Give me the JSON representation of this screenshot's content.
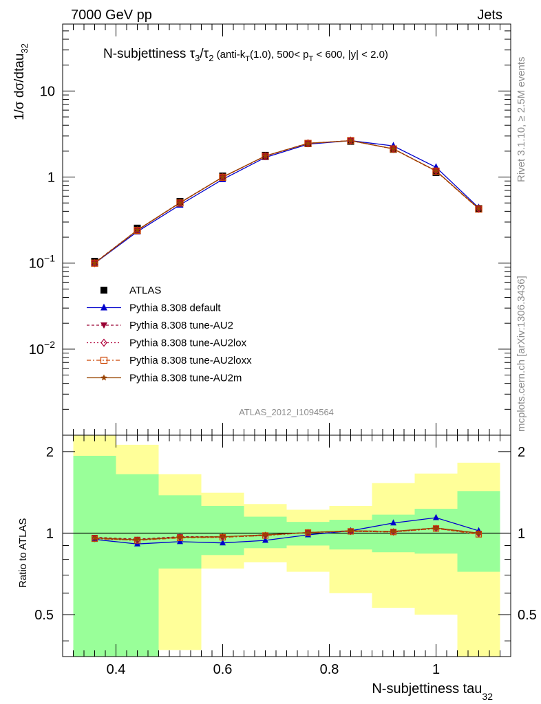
{
  "header": {
    "left": "7000 GeV pp",
    "right": "Jets"
  },
  "side": {
    "rivet": "Rivet 3.1.10, ≥ 2.5M events",
    "mcplots": "mcplots.cern.ch [arXiv:1306.3436]"
  },
  "title": {
    "main": "N-subjettiness τ",
    "sub3": "3",
    "slash": "/τ",
    "sub2": "2",
    "cond1": " (anti-k",
    "subT": "T",
    "cond2": "(1.0), 500< p",
    "subT2": "T",
    "cond3": " < 600, |y| < 2.0)"
  },
  "watermark": "ATLAS_2012_I1094564",
  "ylabel_main": "1/σ dσ/dtau",
  "ylabel_main_sub": "32",
  "ylabel_ratio": "Ratio to ATLAS",
  "xlabel": "N-subjettiness tau",
  "xlabel_sub": "32",
  "main_ticks": [
    {
      "base": "10",
      "exp": "",
      "value": 10
    },
    {
      "base": "1",
      "exp": "",
      "value": 1
    },
    {
      "base": "10",
      "exp": "−1",
      "value": 0.1
    },
    {
      "base": "10",
      "exp": "−2",
      "value": 0.01
    }
  ],
  "ratio_ticks": [
    "2",
    "1",
    "0.5"
  ],
  "ratio_tick_values": [
    2,
    1,
    0.5
  ],
  "x_ticks": [
    "0.4",
    "0.6",
    "0.8",
    "1"
  ],
  "x_tick_values": [
    0.4,
    0.6,
    0.8,
    1.0
  ],
  "chart_data": {
    "type": "line",
    "log_y": true,
    "xlim": [
      0.3,
      1.14
    ],
    "ylim_main": [
      0.001,
      60
    ],
    "ylim_ratio": [
      0.35,
      2.3
    ],
    "ratio_log": true,
    "x_edges": [
      0.32,
      0.4,
      0.48,
      0.56,
      0.64,
      0.72,
      0.8,
      0.88,
      0.96,
      1.04,
      1.12
    ],
    "x": [
      0.36,
      0.44,
      0.52,
      0.6,
      0.68,
      0.76,
      0.84,
      0.92,
      1.0,
      1.08
    ],
    "data": {
      "name": "ATLAS",
      "values": [
        0.105,
        0.255,
        0.52,
        1.03,
        1.79,
        2.45,
        2.6,
        2.1,
        1.13,
        0.43
      ]
    },
    "band_inner": {
      "lo": [
        0.32,
        0.32,
        0.74,
        0.83,
        0.88,
        0.9,
        0.87,
        0.85,
        0.84,
        0.72
      ],
      "hi": [
        1.93,
        1.65,
        1.38,
        1.26,
        1.15,
        1.1,
        1.12,
        1.17,
        1.23,
        1.43
      ]
    },
    "band_outer": {
      "lo": [
        0.32,
        0.32,
        0.37,
        0.74,
        0.78,
        0.72,
        0.6,
        0.53,
        0.5,
        0.32
      ],
      "hi": [
        2.3,
        2.12,
        1.65,
        1.41,
        1.28,
        1.22,
        1.26,
        1.53,
        1.66,
        1.82
      ]
    },
    "series": [
      {
        "name": "Pythia 8.308 default",
        "color": "#0000cc",
        "dash": "",
        "marker": "tri-up",
        "values": [
          0.0995,
          0.232,
          0.475,
          0.94,
          1.69,
          2.41,
          2.65,
          2.3,
          1.3,
          0.44
        ],
        "ratio": [
          0.948,
          0.912,
          0.93,
          0.92,
          0.94,
          0.985,
          1.02,
          1.09,
          1.14,
          1.02
        ]
      },
      {
        "name": "Pythia 8.308 tune-AU2",
        "color": "#990033",
        "dash": "4,3",
        "marker": "tri-down",
        "values": [
          0.101,
          0.242,
          0.505,
          1.0,
          1.76,
          2.47,
          2.65,
          2.13,
          1.18,
          0.43
        ],
        "ratio": [
          0.965,
          0.95,
          0.97,
          0.97,
          0.985,
          1.005,
          1.02,
          1.015,
          1.045,
          1.0
        ]
      },
      {
        "name": "Pythia 8.308 tune-AU2lox",
        "color": "#b0003a",
        "dash": "2,3",
        "marker": "diamond",
        "values": [
          0.1,
          0.24,
          0.502,
          0.998,
          1.75,
          2.47,
          2.65,
          2.12,
          1.18,
          0.428
        ],
        "ratio": [
          0.955,
          0.94,
          0.965,
          0.965,
          0.98,
          1.005,
          1.015,
          1.01,
          1.04,
          0.995
        ]
      },
      {
        "name": "Pythia 8.308 tune-AU2loxx",
        "color": "#cc4400",
        "dash": "6,3,2,3",
        "marker": "square",
        "values": [
          0.1,
          0.24,
          0.5,
          0.995,
          1.75,
          2.46,
          2.65,
          2.12,
          1.17,
          0.425
        ],
        "ratio": [
          0.955,
          0.94,
          0.96,
          0.965,
          0.98,
          1.005,
          1.015,
          1.01,
          1.04,
          0.99
        ]
      },
      {
        "name": "Pythia 8.308 tune-AU2m",
        "color": "#994400",
        "dash": "",
        "marker": "star",
        "values": [
          0.1,
          0.242,
          0.503,
          1.0,
          1.76,
          2.47,
          2.65,
          2.13,
          1.18,
          0.43
        ],
        "ratio": [
          0.96,
          0.945,
          0.965,
          0.97,
          0.985,
          1.005,
          1.02,
          1.015,
          1.045,
          1.0
        ]
      }
    ]
  }
}
